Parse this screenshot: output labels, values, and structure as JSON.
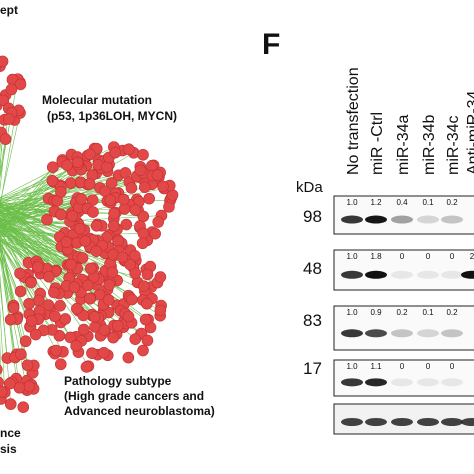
{
  "left_panel": {
    "header_fragment": "ept",
    "labels": [
      {
        "lines": [
          "Molecular mutation",
          "(p53, 1p36LOH, MYCN)"
        ]
      },
      {
        "lines": [
          "Pathology subtype",
          "(High grade cancers and",
          "Advanced neuroblastoma)"
        ]
      },
      {
        "lines": [
          "nce",
          "sis"
        ]
      }
    ]
  },
  "right_panel": {
    "letter": "F",
    "kda_label": "kDa",
    "lanes": [
      "No transfection",
      "miR -Ctrl",
      "miR-34a",
      "miR-34b",
      "miR-34c",
      "Anti-miR-34"
    ],
    "blots": [
      {
        "marker": "98",
        "quantities": [
          "1.0",
          "1.2",
          "0.4",
          "0.1",
          "0.2"
        ]
      },
      {
        "marker": "48",
        "quantities": [
          "1.0",
          "1.8",
          "0",
          "0",
          "0",
          "2"
        ]
      },
      {
        "marker": "83",
        "quantities": [
          "1.0",
          "0.9",
          "0.2",
          "0.1",
          "0.2"
        ]
      },
      {
        "marker": "17",
        "quantities": [
          "1.0",
          "1.1",
          "0",
          "0",
          "0"
        ]
      }
    ]
  }
}
